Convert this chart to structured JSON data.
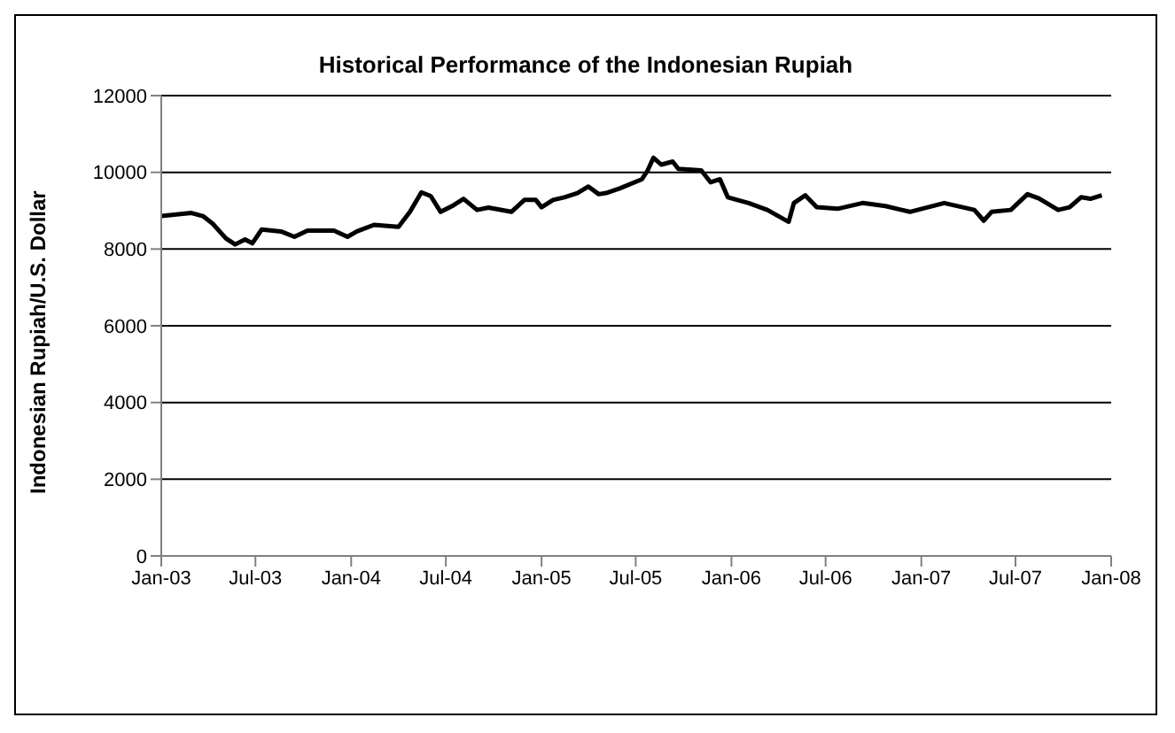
{
  "chart_data": {
    "type": "line",
    "title": "Historical Performance of the Indonesian Rupiah",
    "ylabel": "Indonesian Rupiah/U.S. Dollar",
    "x": [
      "2003-01-01",
      "2003-02-28",
      "2003-03-22",
      "2003-04-10",
      "2003-05-05",
      "2003-05-23",
      "2003-06-11",
      "2003-06-25",
      "2003-07-13",
      "2003-08-19",
      "2003-09-14",
      "2003-10-09",
      "2003-11-29",
      "2003-12-25",
      "2004-01-12",
      "2004-02-14",
      "2004-04-01",
      "2004-04-23",
      "2004-05-15",
      "2004-06-02",
      "2004-06-21",
      "2004-07-13",
      "2004-08-04",
      "2004-08-30",
      "2004-09-21",
      "2004-11-04",
      "2004-11-29",
      "2004-12-21",
      "2005-01-01",
      "2005-01-23",
      "2005-02-14",
      "2005-03-11",
      "2005-04-01",
      "2005-04-21",
      "2005-05-05",
      "2005-05-31",
      "2005-07-13",
      "2005-07-24",
      "2005-08-04",
      "2005-08-19",
      "2005-09-10",
      "2005-09-21",
      "2005-11-04",
      "2005-11-22",
      "2005-12-10",
      "2005-12-25",
      "2006-02-03",
      "2006-03-11",
      "2006-04-21",
      "2006-05-01",
      "2006-05-23",
      "2006-06-14",
      "2006-07-24",
      "2006-09-10",
      "2006-10-24",
      "2006-12-10",
      "2007-02-14",
      "2007-04-13",
      "2007-05-01",
      "2007-05-16",
      "2007-06-22",
      "2007-07-24",
      "2007-08-15",
      "2007-09-21",
      "2007-10-13",
      "2007-11-04",
      "2007-11-22",
      "2007-12-14"
    ],
    "series": [
      {
        "color": "#000000",
        "values": [
          8860,
          8940,
          8860,
          8660,
          8280,
          8120,
          8250,
          8150,
          8510,
          8460,
          8320,
          8480,
          8480,
          8320,
          8460,
          8630,
          8580,
          8970,
          9480,
          9380,
          8970,
          9120,
          9310,
          9020,
          9080,
          8970,
          9280,
          9280,
          9090,
          9280,
          9350,
          9460,
          9630,
          9430,
          9460,
          9580,
          9820,
          10050,
          10380,
          10200,
          10280,
          10090,
          10050,
          9740,
          9820,
          9350,
          9200,
          9020,
          8710,
          9200,
          9400,
          9090,
          9050,
          9200,
          9120,
          8970,
          9200,
          9020,
          8740,
          8970,
          9020,
          9430,
          9320,
          9020,
          9090,
          9350,
          9310,
          9400
        ]
      }
    ],
    "xlim": [
      "2003-01-01",
      "2008-01-01"
    ],
    "xticks": [
      {
        "value": "2003-01-01",
        "label": "Jan-03"
      },
      {
        "value": "2003-07-01",
        "label": "Jul-03"
      },
      {
        "value": "2004-01-01",
        "label": "Jan-04"
      },
      {
        "value": "2004-07-01",
        "label": "Jul-04"
      },
      {
        "value": "2005-01-01",
        "label": "Jan-05"
      },
      {
        "value": "2005-07-01",
        "label": "Jul-05"
      },
      {
        "value": "2006-01-01",
        "label": "Jan-06"
      },
      {
        "value": "2006-07-01",
        "label": "Jul-06"
      },
      {
        "value": "2007-01-01",
        "label": "Jan-07"
      },
      {
        "value": "2007-07-01",
        "label": "Jul-07"
      },
      {
        "value": "2008-01-01",
        "label": "Jan-08"
      }
    ],
    "ylim": [
      0,
      12000
    ],
    "yticks": [
      0,
      2000,
      4000,
      6000,
      8000,
      10000,
      12000
    ],
    "grid": "y",
    "legend": false,
    "marker": "none",
    "line_style": "solid"
  }
}
